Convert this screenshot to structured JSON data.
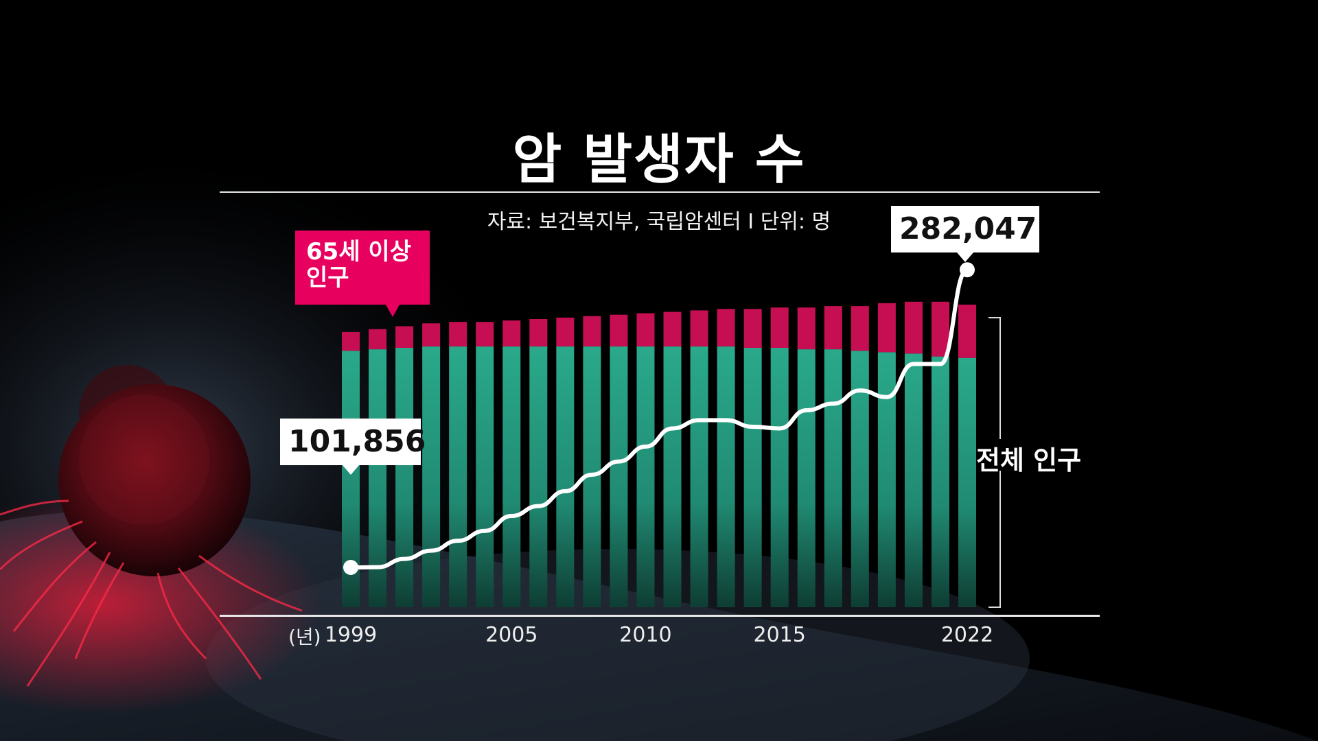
{
  "title": "암 발생자 수",
  "source": "자료: 보건복지부, 국립암센터  I  단위: 명",
  "labels": {
    "elderly": [
      "65세 이상",
      "인구"
    ],
    "total": "전체 인구",
    "year_unit": "(년)"
  },
  "colors": {
    "bar_total": "#27a487",
    "bar_elderly": "#c60f52",
    "line": "#ffffff",
    "tag": "#e8005f"
  },
  "chart_data": {
    "type": "bar",
    "categories": [
      "1999",
      "2000",
      "2001",
      "2002",
      "2003",
      "2004",
      "2005",
      "2006",
      "2007",
      "2008",
      "2009",
      "2010",
      "2011",
      "2012",
      "2013",
      "2014",
      "2015",
      "2016",
      "2017",
      "2018",
      "2019",
      "2020",
      "2021",
      "2022"
    ],
    "series": [
      {
        "values": [
          1.78,
          1.79,
          1.8,
          1.81,
          1.81,
          1.81,
          1.81,
          1.81,
          1.81,
          1.81,
          1.81,
          1.81,
          1.81,
          1.81,
          1.81,
          1.8,
          1.8,
          1.79,
          1.79,
          1.78,
          1.77,
          1.76,
          1.74,
          1.73
        ]
      },
      {
        "values": [
          0.13,
          0.14,
          0.15,
          0.16,
          0.17,
          0.17,
          0.18,
          0.19,
          0.2,
          0.21,
          0.22,
          0.23,
          0.24,
          0.25,
          0.26,
          0.27,
          0.28,
          0.29,
          0.3,
          0.31,
          0.34,
          0.36,
          0.38,
          0.37
        ]
      },
      {
        "values": [
          101856,
          102000,
          107000,
          112000,
          118000,
          124000,
          133000,
          139000,
          148000,
          158000,
          166000,
          175000,
          186000,
          191000,
          191000,
          187000,
          186000,
          197000,
          201000,
          209000,
          205000,
          225000,
          225000,
          282047
        ]
      }
    ],
    "callouts": [
      {
        "category": "1999",
        "value": "101,856"
      },
      {
        "category": "2022",
        "value": "282,047"
      }
    ],
    "xticks": [
      "1999",
      "2005",
      "2010",
      "2015",
      "2022"
    ],
    "ylim_line": [
      30000,
      300000
    ]
  }
}
